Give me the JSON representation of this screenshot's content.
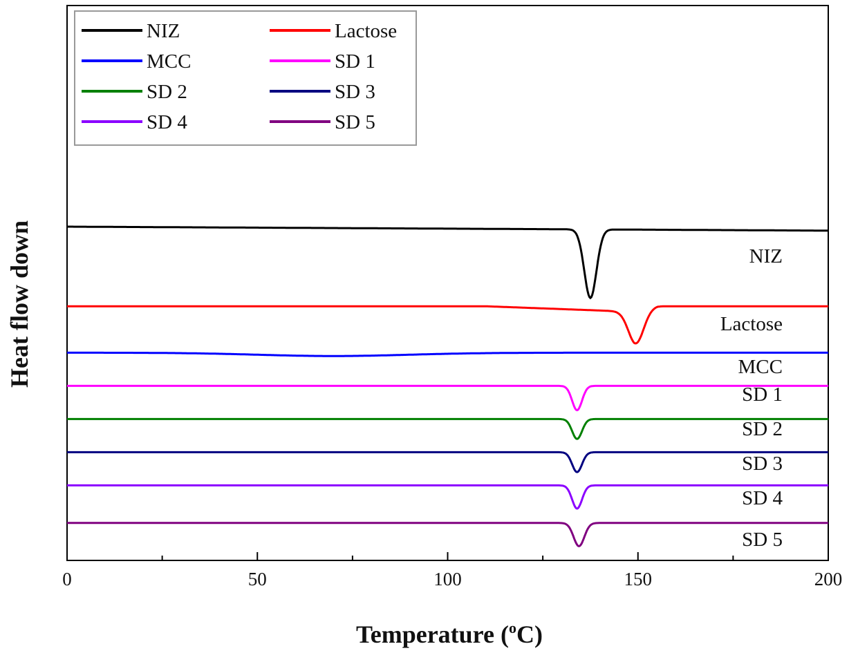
{
  "chart_data": {
    "type": "line",
    "xlabel_main": "Temperature (",
    "xlabel_sup": "o",
    "xlabel_end": "C)",
    "ylabel": "Heat flow down",
    "xlim": [
      0,
      200
    ],
    "x_ticks": [
      0,
      50,
      100,
      150,
      200
    ],
    "x_tick_labels": [
      "0",
      "50",
      "100",
      "150",
      "200"
    ],
    "legend_position": "top-left",
    "series": [
      {
        "name": "NIZ",
        "color": "#000000",
        "baseline": 0,
        "dip_center": 137.5,
        "dip_depth": 3.1,
        "dip_width": 1.6,
        "curve_label": "NIZ"
      },
      {
        "name": "Lactose",
        "color": "#ff0000",
        "baseline": -3.6,
        "dip_center": 149.5,
        "dip_depth": 1.45,
        "dip_width": 2.0,
        "curve_label": "Lactose"
      },
      {
        "name": "MCC",
        "color": "#0000ff",
        "baseline": -5.7,
        "dip_center": 70,
        "dip_depth": 0.15,
        "dip_width": 20,
        "curve_label": "MCC"
      },
      {
        "name": "SD 1",
        "color": "#ff00ff",
        "baseline": -7.2,
        "dip_center": 134,
        "dip_depth": 1.1,
        "dip_width": 1.3,
        "curve_label": "SD 1"
      },
      {
        "name": "SD 2",
        "color": "#008000",
        "baseline": -8.7,
        "dip_center": 134,
        "dip_depth": 0.9,
        "dip_width": 1.3,
        "curve_label": "SD 2"
      },
      {
        "name": "SD 3",
        "color": "#000080",
        "baseline": -10.2,
        "dip_center": 134,
        "dip_depth": 0.9,
        "dip_width": 1.3,
        "curve_label": "SD 3"
      },
      {
        "name": "SD 4",
        "color": "#8b00ff",
        "baseline": -11.7,
        "dip_center": 134,
        "dip_depth": 1.05,
        "dip_width": 1.3,
        "curve_label": "SD 4"
      },
      {
        "name": "SD 5",
        "color": "#800080",
        "baseline": -13.4,
        "dip_center": 134.5,
        "dip_depth": 1.05,
        "dip_width": 1.4,
        "curve_label": "SD 5"
      }
    ]
  }
}
